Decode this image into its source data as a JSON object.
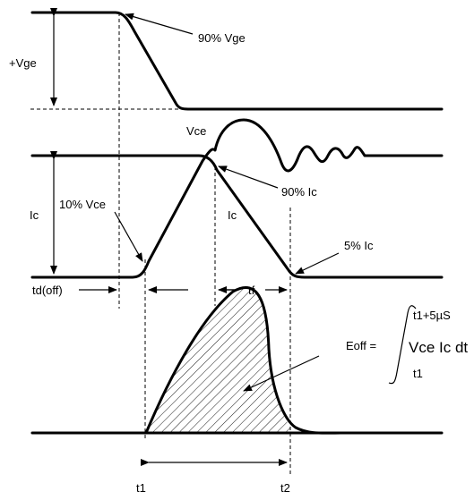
{
  "labels": {
    "vge_90": "90% Vge",
    "vge": "+Vge",
    "vce": "Vce",
    "ic_axis": "Ic",
    "vce_10": "10% Vce",
    "ic_90": "90% Ic",
    "ic_fall": "Ic",
    "ic_5": "5% Ic",
    "td_off": "td(off)",
    "tf": "tf",
    "eoff_lhs": "Eoff =",
    "int_upper": "t1+5µS",
    "int_body": "Vce Ic dt",
    "int_lower": "t1",
    "t1": "t1",
    "t2": "t2"
  }
}
